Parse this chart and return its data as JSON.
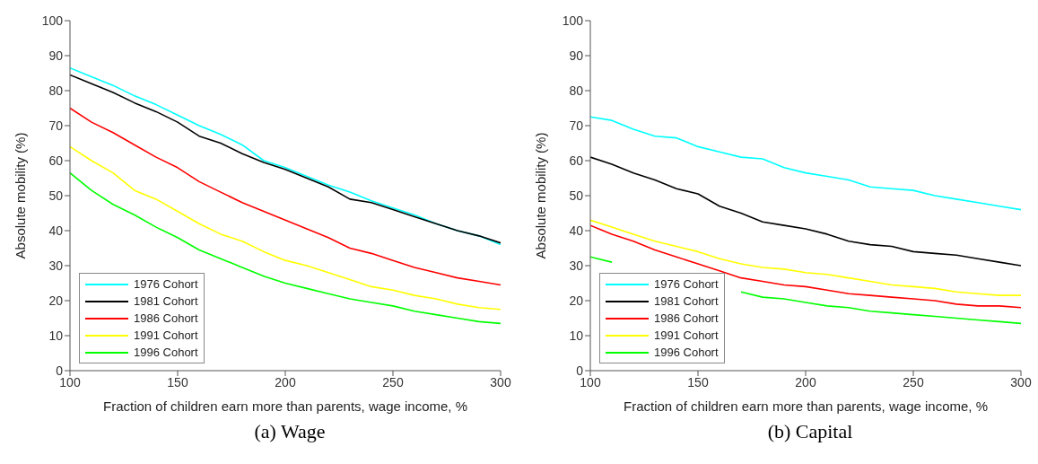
{
  "chart_data": [
    {
      "type": "line",
      "title": "(a) Wage",
      "xlabel": "Fraction of children earn more than parents, wage income, %",
      "ylabel": "Absolute mobility (%)",
      "x": [
        100,
        110,
        120,
        130,
        140,
        150,
        160,
        170,
        180,
        190,
        200,
        210,
        220,
        230,
        240,
        250,
        260,
        270,
        280,
        290,
        300
      ],
      "series": [
        {
          "name": "1976 Cohort",
          "color": "#00ffff",
          "values": [
            86.5,
            84,
            81.5,
            78.5,
            76,
            73,
            70,
            67.5,
            64.5,
            60,
            58,
            55.5,
            53,
            51,
            48.5,
            46.5,
            44.5,
            42,
            40,
            38.5,
            36
          ]
        },
        {
          "name": "1981 Cohort",
          "color": "#000000",
          "values": [
            84.5,
            82,
            79.5,
            76.5,
            74,
            71,
            67,
            65,
            62,
            59.5,
            57.5,
            55,
            52.5,
            49,
            48,
            46,
            44,
            42,
            40,
            38.5,
            36.5
          ]
        },
        {
          "name": "1986 Cohort",
          "color": "#ff0000",
          "values": [
            75,
            71,
            68,
            64.5,
            61,
            58,
            54,
            51,
            48,
            45.5,
            43,
            40.5,
            38,
            35,
            33.5,
            31.5,
            29.5,
            28,
            26.5,
            25.5,
            24.5
          ]
        },
        {
          "name": "1991 Cohort",
          "color": "#ffff00",
          "values": [
            64,
            60,
            56.5,
            51.5,
            49,
            45.5,
            42,
            39,
            37,
            34,
            31.5,
            30,
            28,
            26,
            24,
            23,
            21.5,
            20.5,
            19,
            18,
            17.5
          ]
        },
        {
          "name": "1996 Cohort",
          "color": "#00ff00",
          "values": [
            56.5,
            51.5,
            47.5,
            44.5,
            41,
            38,
            34.5,
            32,
            29.5,
            27,
            25,
            23.5,
            22,
            20.5,
            19.5,
            18.5,
            17,
            16,
            15,
            14,
            13.5
          ]
        }
      ],
      "xlim": [
        100,
        300
      ],
      "xticks": [
        100,
        150,
        200,
        250,
        300
      ],
      "ylim": [
        0,
        100
      ],
      "yticks": [
        0,
        10,
        20,
        30,
        40,
        50,
        60,
        70,
        80,
        90,
        100
      ],
      "legend": "bottom left"
    },
    {
      "type": "line",
      "title": "(b) Capital",
      "xlabel": "Fraction of children earn more than parents, wage income, %",
      "ylabel": "Absolute mobility (%)",
      "x": [
        100,
        110,
        120,
        130,
        140,
        150,
        160,
        170,
        180,
        190,
        200,
        210,
        220,
        230,
        240,
        250,
        260,
        270,
        280,
        290,
        300
      ],
      "series": [
        {
          "name": "1976 Cohort",
          "color": "#00ffff",
          "values": [
            72.5,
            71.5,
            69,
            67,
            66.5,
            64,
            62.5,
            61,
            60.5,
            58,
            56.5,
            55.5,
            54.5,
            52.5,
            52,
            51.5,
            50,
            49,
            48,
            47,
            46
          ]
        },
        {
          "name": "1981 Cohort",
          "color": "#000000",
          "values": [
            61,
            59,
            56.5,
            54.5,
            52,
            50.5,
            47,
            45,
            42.5,
            41.5,
            40.5,
            39,
            37,
            36,
            35.5,
            34,
            33.5,
            33,
            32,
            31,
            30
          ]
        },
        {
          "name": "1986 Cohort",
          "color": "#ff0000",
          "values": [
            41.5,
            39,
            37,
            34.5,
            32.5,
            30.5,
            28.5,
            26.5,
            25.5,
            24.5,
            24,
            23,
            22,
            21.5,
            21,
            20.5,
            20,
            19,
            18.5,
            18.5,
            18
          ]
        },
        {
          "name": "1991 Cohort",
          "color": "#ffff00",
          "values": [
            43,
            41,
            39,
            37,
            35.5,
            34,
            32,
            30.5,
            29.5,
            29,
            28,
            27.5,
            26.5,
            25.5,
            24.5,
            24,
            23.5,
            22.5,
            22,
            21.5,
            21.5
          ]
        },
        {
          "name": "1996 Cohort",
          "color": "#00ff00",
          "values": [
            32.5,
            31,
            null,
            null,
            null,
            null,
            null,
            22.5,
            21,
            20.5,
            19.5,
            18.5,
            18,
            17,
            16.5,
            16,
            15.5,
            15,
            14.5,
            14,
            13.5
          ]
        }
      ],
      "xlim": [
        100,
        300
      ],
      "xticks": [
        100,
        150,
        200,
        250,
        300
      ],
      "ylim": [
        0,
        100
      ],
      "yticks": [
        0,
        10,
        20,
        30,
        40,
        50,
        60,
        70,
        80,
        90,
        100
      ],
      "legend": "bottom left"
    }
  ]
}
